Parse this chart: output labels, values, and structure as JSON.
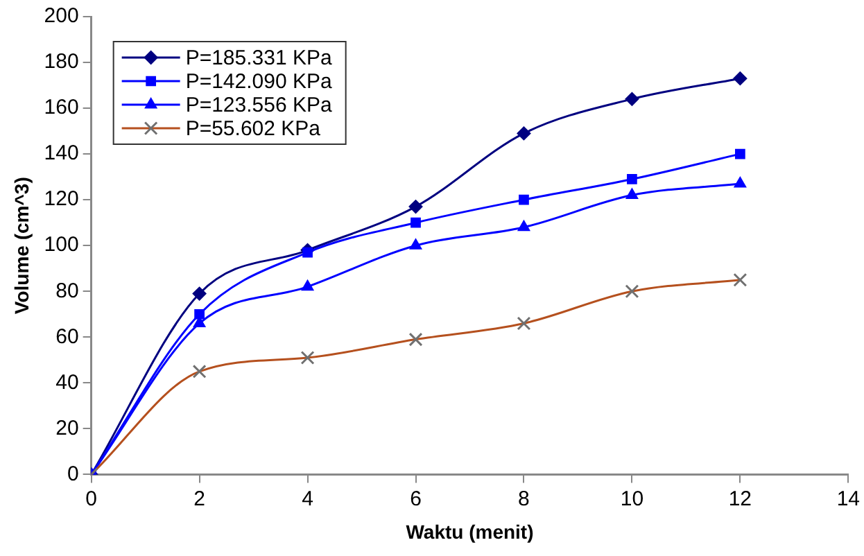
{
  "chart_data": {
    "type": "line",
    "xlabel": "Waktu (menit)",
    "ylabel": "Volume (cm^3)",
    "x": [
      0,
      2,
      4,
      6,
      8,
      10,
      12
    ],
    "series": [
      {
        "name": "P=185.331 KPa",
        "color": "#000080",
        "marker": "diamond",
        "values": [
          0,
          79,
          98,
          117,
          149,
          164,
          173
        ]
      },
      {
        "name": "P=142.090 KPa",
        "color": "#0000ff",
        "marker": "square",
        "values": [
          0,
          70,
          97,
          110,
          120,
          129,
          140
        ]
      },
      {
        "name": "P=123.556 KPa",
        "color": "#0000ff",
        "marker": "triangle",
        "values": [
          0,
          66,
          82,
          100,
          108,
          122,
          127
        ]
      },
      {
        "name": "P=55.602 KPa",
        "color": "#b5501e",
        "marker": "cross",
        "values": [
          0,
          45,
          51,
          59,
          66,
          80,
          85
        ]
      }
    ],
    "xlim": [
      0,
      14
    ],
    "xticks": [
      0,
      2,
      4,
      6,
      8,
      10,
      12,
      14
    ],
    "ylim": [
      0,
      200
    ],
    "yticks": [
      0,
      20,
      40,
      60,
      80,
      100,
      120,
      140,
      160,
      180,
      200
    ],
    "grid": false,
    "legend": "top left"
  }
}
